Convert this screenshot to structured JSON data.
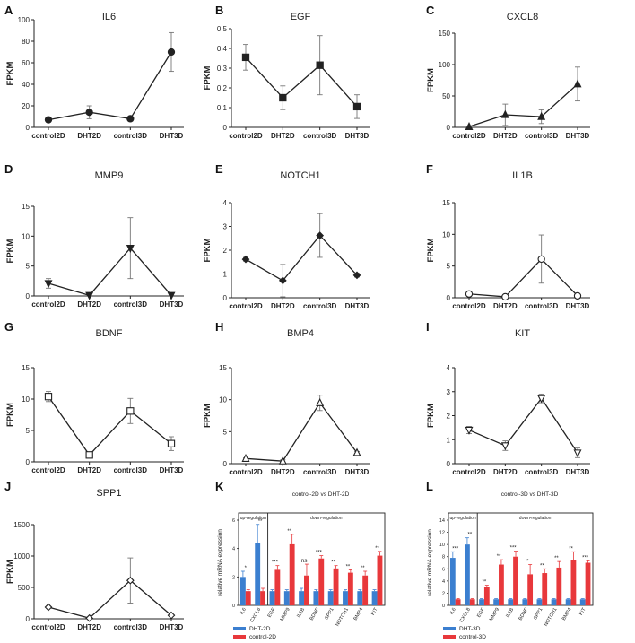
{
  "chart_data": [
    {
      "panel": "A",
      "type": "line",
      "title": "IL6",
      "ylabel": "FPKM",
      "xlabel": "",
      "categories": [
        "control2D",
        "DHT2D",
        "control3D",
        "DHT3D"
      ],
      "values": [
        7,
        14,
        8,
        70
      ],
      "errors": [
        0,
        6,
        2,
        18
      ],
      "ylim": [
        0,
        100
      ],
      "yticks": [
        0,
        20,
        40,
        60,
        80,
        100
      ],
      "marker": "circle"
    },
    {
      "panel": "B",
      "type": "line",
      "title": "EGF",
      "ylabel": "FPKM",
      "xlabel": "",
      "categories": [
        "control2D",
        "DHT2D",
        "control3D",
        "DHT3D"
      ],
      "values": [
        0.355,
        0.15,
        0.315,
        0.105
      ],
      "errors": [
        0.065,
        0.06,
        0.15,
        0.06
      ],
      "ylim": [
        0,
        0.5
      ],
      "yticks": [
        0,
        0.1,
        0.2,
        0.3,
        0.4,
        0.5
      ],
      "marker": "square-filled"
    },
    {
      "panel": "C",
      "type": "line",
      "title": "CXCL8",
      "ylabel": "FPKM",
      "xlabel": "",
      "categories": [
        "control2D",
        "DHT2D",
        "control3D",
        "DHT3D"
      ],
      "values": [
        1,
        20,
        17,
        69
      ],
      "errors": [
        1,
        17,
        11,
        27
      ],
      "ylim": [
        0,
        150
      ],
      "yticks": [
        0,
        50,
        100,
        150
      ],
      "marker": "triangle-filled"
    },
    {
      "panel": "D",
      "type": "line",
      "title": "MMP9",
      "ylabel": "FPKM",
      "xlabel": "",
      "categories": [
        "control2D",
        "DHT2D",
        "control3D",
        "DHT3D"
      ],
      "values": [
        2.1,
        0.1,
        8,
        0.1
      ],
      "errors": [
        0.8,
        0,
        5.1,
        0
      ],
      "ylim": [
        0,
        15
      ],
      "yticks": [
        0,
        5,
        10,
        15
      ],
      "marker": "triangle-down"
    },
    {
      "panel": "E",
      "type": "line",
      "title": "NOTCH1",
      "ylabel": "FPKM",
      "xlabel": "",
      "categories": [
        "control2D",
        "DHT2D",
        "control3D",
        "DHT3D"
      ],
      "values": [
        1.62,
        0.72,
        2.62,
        0.95
      ],
      "errors": [
        0.08,
        0.68,
        0.92,
        0.08
      ],
      "ylim": [
        0,
        4
      ],
      "yticks": [
        0,
        1,
        2,
        3,
        4
      ],
      "marker": "diamond"
    },
    {
      "panel": "F",
      "type": "line",
      "title": "IL1B",
      "ylabel": "FPKM",
      "xlabel": "",
      "categories": [
        "control2D",
        "DHT2D",
        "control3D",
        "DHT3D"
      ],
      "values": [
        0.6,
        0.15,
        6.1,
        0.3
      ],
      "errors": [
        0.3,
        0,
        3.8,
        0
      ],
      "ylim": [
        0,
        15
      ],
      "yticks": [
        0,
        5,
        10,
        15
      ],
      "marker": "circle-open"
    },
    {
      "panel": "G",
      "type": "line",
      "title": "BDNF",
      "ylabel": "FPKM",
      "xlabel": "",
      "categories": [
        "control2D",
        "DHT2D",
        "control3D",
        "DHT3D"
      ],
      "values": [
        10.4,
        1.1,
        8.1,
        2.9
      ],
      "errors": [
        0.8,
        0.1,
        2,
        1.1
      ],
      "ylim": [
        0,
        15
      ],
      "yticks": [
        0,
        5,
        10,
        15
      ],
      "marker": "square-open"
    },
    {
      "panel": "H",
      "type": "line",
      "title": "BMP4",
      "ylabel": "FPKM",
      "xlabel": "",
      "categories": [
        "control2D",
        "DHT2D",
        "control3D",
        "DHT3D"
      ],
      "values": [
        0.8,
        0.4,
        9.5,
        1.7
      ],
      "errors": [
        0.1,
        0.2,
        1.2,
        0.2
      ],
      "ylim": [
        0,
        15
      ],
      "yticks": [
        0,
        5,
        10,
        15
      ],
      "marker": "triangle-open"
    },
    {
      "panel": "I",
      "type": "line",
      "title": "KIT",
      "ylabel": "FPKM",
      "xlabel": "",
      "categories": [
        "control2D",
        "DHT2D",
        "control3D",
        "DHT3D"
      ],
      "values": [
        1.4,
        0.75,
        2.72,
        0.45
      ],
      "errors": [
        0.15,
        0.2,
        0.18,
        0.2
      ],
      "ylim": [
        0,
        4
      ],
      "yticks": [
        0,
        1,
        2,
        3,
        4
      ],
      "marker": "triangle-down-open"
    },
    {
      "panel": "J",
      "type": "line",
      "title": "SPP1",
      "ylabel": "FPKM",
      "xlabel": "",
      "categories": [
        "control2D",
        "DHT2D",
        "control3D",
        "DHT3D"
      ],
      "values": [
        185,
        10,
        610,
        55
      ],
      "errors": [
        10,
        5,
        360,
        8
      ],
      "ylim": [
        0,
        1500
      ],
      "yticks": [
        0,
        500,
        1000,
        1500
      ],
      "marker": "diamond-open"
    },
    {
      "panel": "K",
      "type": "bar",
      "title": "control-2D vs DHT-2D",
      "ylabel": "relative mRNA expression",
      "categories": [
        "IL6",
        "CXCL8",
        "EGF",
        "MMP9",
        "IL1B",
        "BDNF",
        "SPP1",
        "NOTCH1",
        "BMP4",
        "KIT"
      ],
      "series": [
        {
          "name": "DHT-2D",
          "color": "#3b7fd0",
          "values": [
            2.0,
            4.4,
            1.0,
            1.0,
            1.0,
            1.0,
            1.0,
            1.0,
            1.0,
            1.0
          ],
          "errors": [
            0.4,
            1.3,
            0.1,
            0.1,
            0.2,
            0.1,
            0.1,
            0.1,
            0.1,
            0.1
          ]
        },
        {
          "name": "control-2D",
          "color": "#e8383b",
          "values": [
            1.0,
            1.0,
            2.5,
            4.3,
            2.1,
            3.3,
            2.6,
            2.3,
            2.1,
            3.5
          ],
          "errors": [
            0.1,
            0.2,
            0.3,
            0.7,
            0.8,
            0.2,
            0.2,
            0.2,
            0.3,
            0.3
          ]
        }
      ],
      "ylim": [
        0,
        6
      ],
      "annotations": [
        "*",
        "**",
        "***",
        "**",
        "ns",
        "***",
        "**",
        "**",
        "**",
        "**"
      ],
      "groups": [
        {
          "label": "up-regulation",
          "span": [
            0,
            1
          ]
        },
        {
          "label": "down-regulation",
          "span": [
            2,
            9
          ]
        }
      ],
      "legend": "bottom-left"
    },
    {
      "panel": "L",
      "type": "bar",
      "title": "control-3D vs DHT-3D",
      "ylabel": "relative mRNA expression",
      "categories": [
        "IL6",
        "CXCL8",
        "EGF",
        "MMP9",
        "IL1B",
        "BDNF",
        "SPP1",
        "NOTCH1",
        "BMP4",
        "KIT"
      ],
      "series": [
        {
          "name": "DHT-3D",
          "color": "#3b7fd0",
          "values": [
            7.8,
            10.0,
            1.0,
            1.0,
            1.0,
            1.0,
            1.0,
            1.0,
            1.0,
            1.0
          ],
          "errors": [
            1.0,
            1.1,
            0.1,
            0.1,
            0.1,
            0.1,
            0.1,
            0.1,
            0.1,
            0.1
          ]
        },
        {
          "name": "control-3D",
          "color": "#e8383b",
          "values": [
            1.0,
            1.0,
            3.0,
            6.7,
            8.0,
            5.1,
            5.3,
            6.2,
            7.4,
            7.0
          ],
          "errors": [
            0.1,
            0.1,
            0.3,
            0.8,
            0.9,
            1.6,
            0.7,
            1.0,
            1.4,
            0.3
          ]
        }
      ],
      "ylim": [
        0,
        14
      ],
      "yticks": [
        0,
        2,
        4,
        6,
        8,
        10,
        12,
        14
      ],
      "annotations": [
        "***",
        "**",
        "**",
        "**",
        "***",
        "*",
        "**",
        "**",
        "**",
        "***"
      ],
      "groups": [
        {
          "label": "up-regulation",
          "span": [
            0,
            1
          ]
        },
        {
          "label": "down-regulation",
          "span": [
            2,
            9
          ]
        }
      ],
      "legend": "bottom-left"
    }
  ]
}
